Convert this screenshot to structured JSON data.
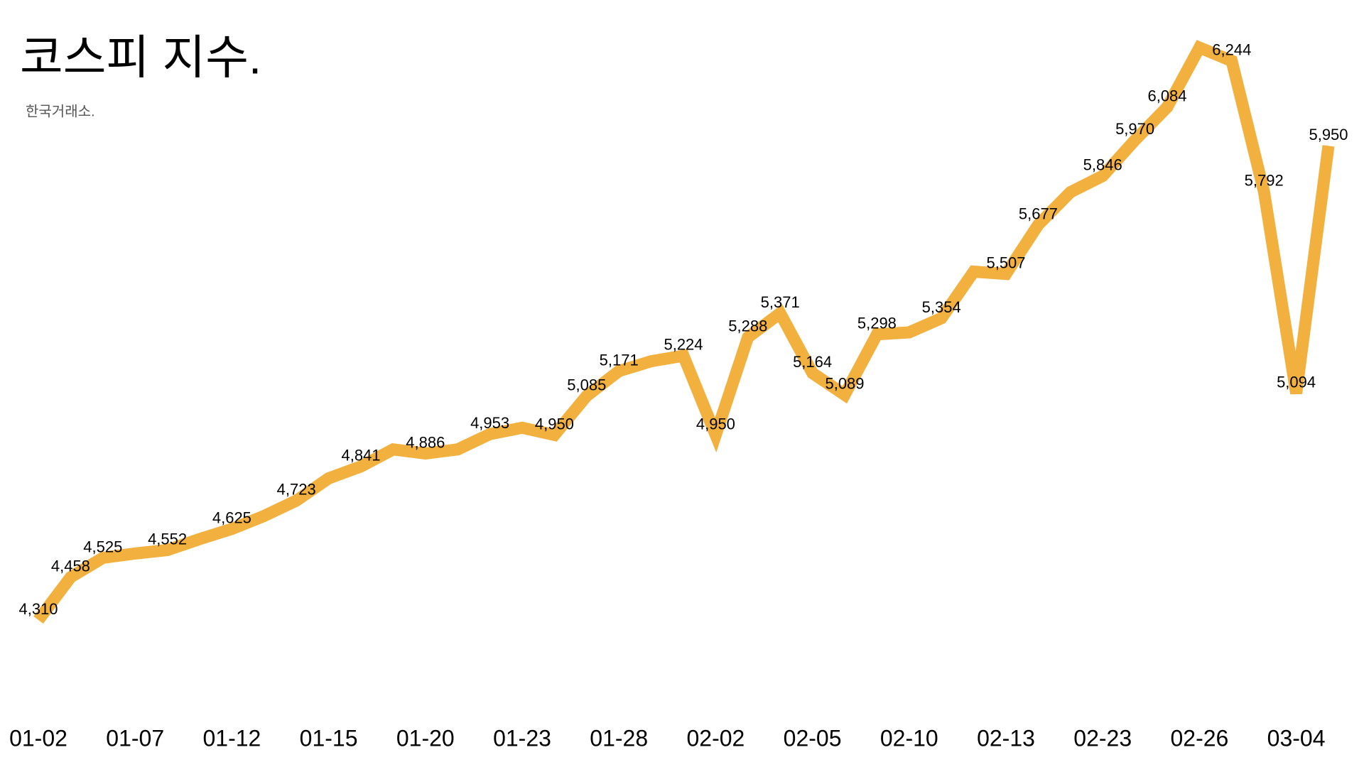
{
  "chart_data": {
    "type": "line",
    "title": "코스피 지수.",
    "subtitle": "한국거래소.",
    "categories": [
      "01-02",
      null,
      null,
      "01-07",
      null,
      null,
      "01-12",
      null,
      null,
      "01-15",
      null,
      null,
      "01-20",
      null,
      null,
      "01-23",
      null,
      null,
      "01-28",
      null,
      null,
      "02-02",
      null,
      null,
      "02-05",
      null,
      null,
      "02-10",
      null,
      null,
      "02-13",
      null,
      null,
      "02-23",
      null,
      null,
      "02-26",
      null,
      null,
      "03-04",
      null
    ],
    "series": [
      {
        "name": "코스피",
        "color": "#f2b13e",
        "values": [
          4310,
          4458,
          4525,
          4540,
          4552,
          4590,
          4625,
          4670,
          4723,
          4800,
          4841,
          4900,
          4886,
          4900,
          4953,
          4975,
          4950,
          5085,
          5171,
          5205,
          5224,
          4950,
          5288,
          5371,
          5164,
          5089,
          5298,
          5305,
          5354,
          5515,
          5507,
          5677,
          5790,
          5846,
          5970,
          6084,
          6290,
          6244,
          5792,
          5094,
          5950
        ],
        "value_labels": [
          "4,310",
          "4,458",
          "4,525",
          null,
          "4,552",
          null,
          "4,625",
          null,
          "4,723",
          null,
          "4,841",
          null,
          "4,886",
          null,
          "4,953",
          null,
          "4,950",
          "5,085",
          "5,171",
          null,
          "5,224",
          "4,950",
          "5,288",
          "5,371",
          "5,164",
          "5,089",
          "5,298",
          null,
          "5,354",
          null,
          "5,507",
          "5,677",
          null,
          "5,846",
          "5,970",
          "6,084",
          null,
          "6,244",
          "5,792",
          "5,094",
          "5,950"
        ]
      }
    ]
  }
}
